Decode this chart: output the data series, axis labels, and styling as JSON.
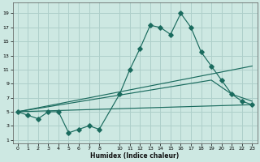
{
  "xlabel": "Humidex (Indice chaleur)",
  "bg_color": "#cde8e2",
  "grid_color": "#aecfca",
  "line_color": "#1a6b5e",
  "xlim": [
    -0.5,
    23.5
  ],
  "ylim": [
    0.5,
    20.5
  ],
  "xtick_vals": [
    0,
    1,
    2,
    3,
    4,
    5,
    6,
    7,
    8,
    10,
    11,
    12,
    13,
    14,
    15,
    16,
    17,
    18,
    19,
    20,
    21,
    22,
    23
  ],
  "xtick_labels": [
    "0",
    "1",
    "2",
    "3",
    "4",
    "5",
    "6",
    "7",
    "8",
    "10",
    "11",
    "12",
    "13",
    "14",
    "15",
    "16",
    "17",
    "18",
    "19",
    "20",
    "21",
    "22",
    "23"
  ],
  "ytick_vals": [
    1,
    3,
    5,
    7,
    9,
    11,
    13,
    15,
    17,
    19
  ],
  "curve_main_x": [
    0,
    1,
    2,
    3,
    4,
    5,
    6,
    7,
    8,
    10,
    11,
    12,
    13,
    14,
    15,
    16,
    17,
    18,
    19,
    20,
    21,
    22,
    23
  ],
  "curve_main_y": [
    5,
    4.5,
    4,
    5,
    5,
    2,
    2.5,
    3,
    2.5,
    7.5,
    11,
    14,
    17.3,
    17.0,
    16.0,
    19,
    17,
    13.5,
    11.5,
    9.5,
    7.5,
    6.5,
    6
  ],
  "line1_x": [
    0,
    23
  ],
  "line1_y": [
    5,
    11.5
  ],
  "line2_x": [
    0,
    19,
    21,
    23
  ],
  "line2_y": [
    5,
    9.5,
    7.5,
    6.5
  ],
  "line3_x": [
    0,
    23
  ],
  "line3_y": [
    5,
    6.0
  ],
  "lw": 0.85,
  "ms": 2.8
}
